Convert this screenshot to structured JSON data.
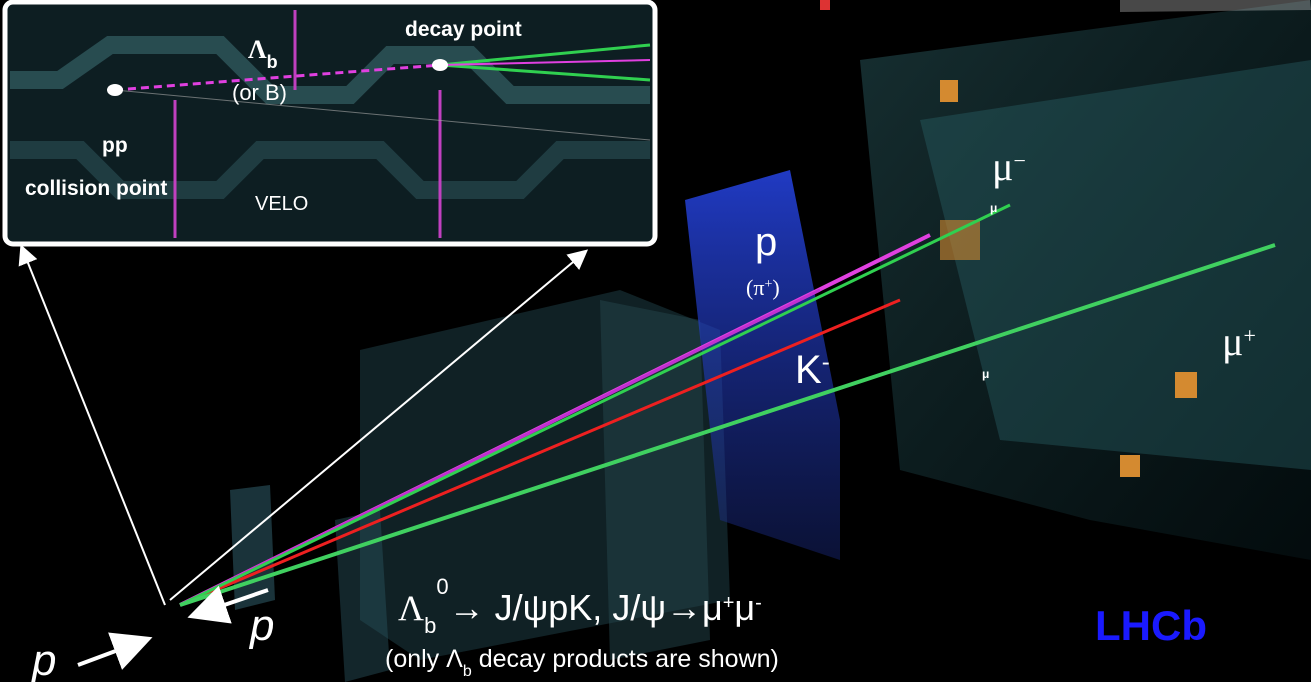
{
  "inset": {
    "decay_label": "decay point",
    "particle": [
      "Λ",
      "b"
    ],
    "alternative": "(or B)",
    "collision_label": [
      "pp",
      "collision point"
    ],
    "detector": "VELO"
  },
  "tracks": {
    "proton": "p",
    "proton_alt": [
      "(π",
      "+",
      ")"
    ],
    "kaon": [
      "K",
      "-"
    ],
    "muon_minus": [
      "μ",
      "−"
    ],
    "muon_plus": [
      "μ",
      "+"
    ],
    "muon_hits": [
      "μ",
      "μ"
    ]
  },
  "beams": {
    "left": "p",
    "right": "p"
  },
  "decay": [
    "Λ",
    "b",
    "0",
    "→ J/ψpK, J/ψ→μ",
    "+",
    "μ",
    "-"
  ],
  "note": [
    "(only Λ",
    "b",
    " decay products are shown)"
  ],
  "logo": "LHCb"
}
